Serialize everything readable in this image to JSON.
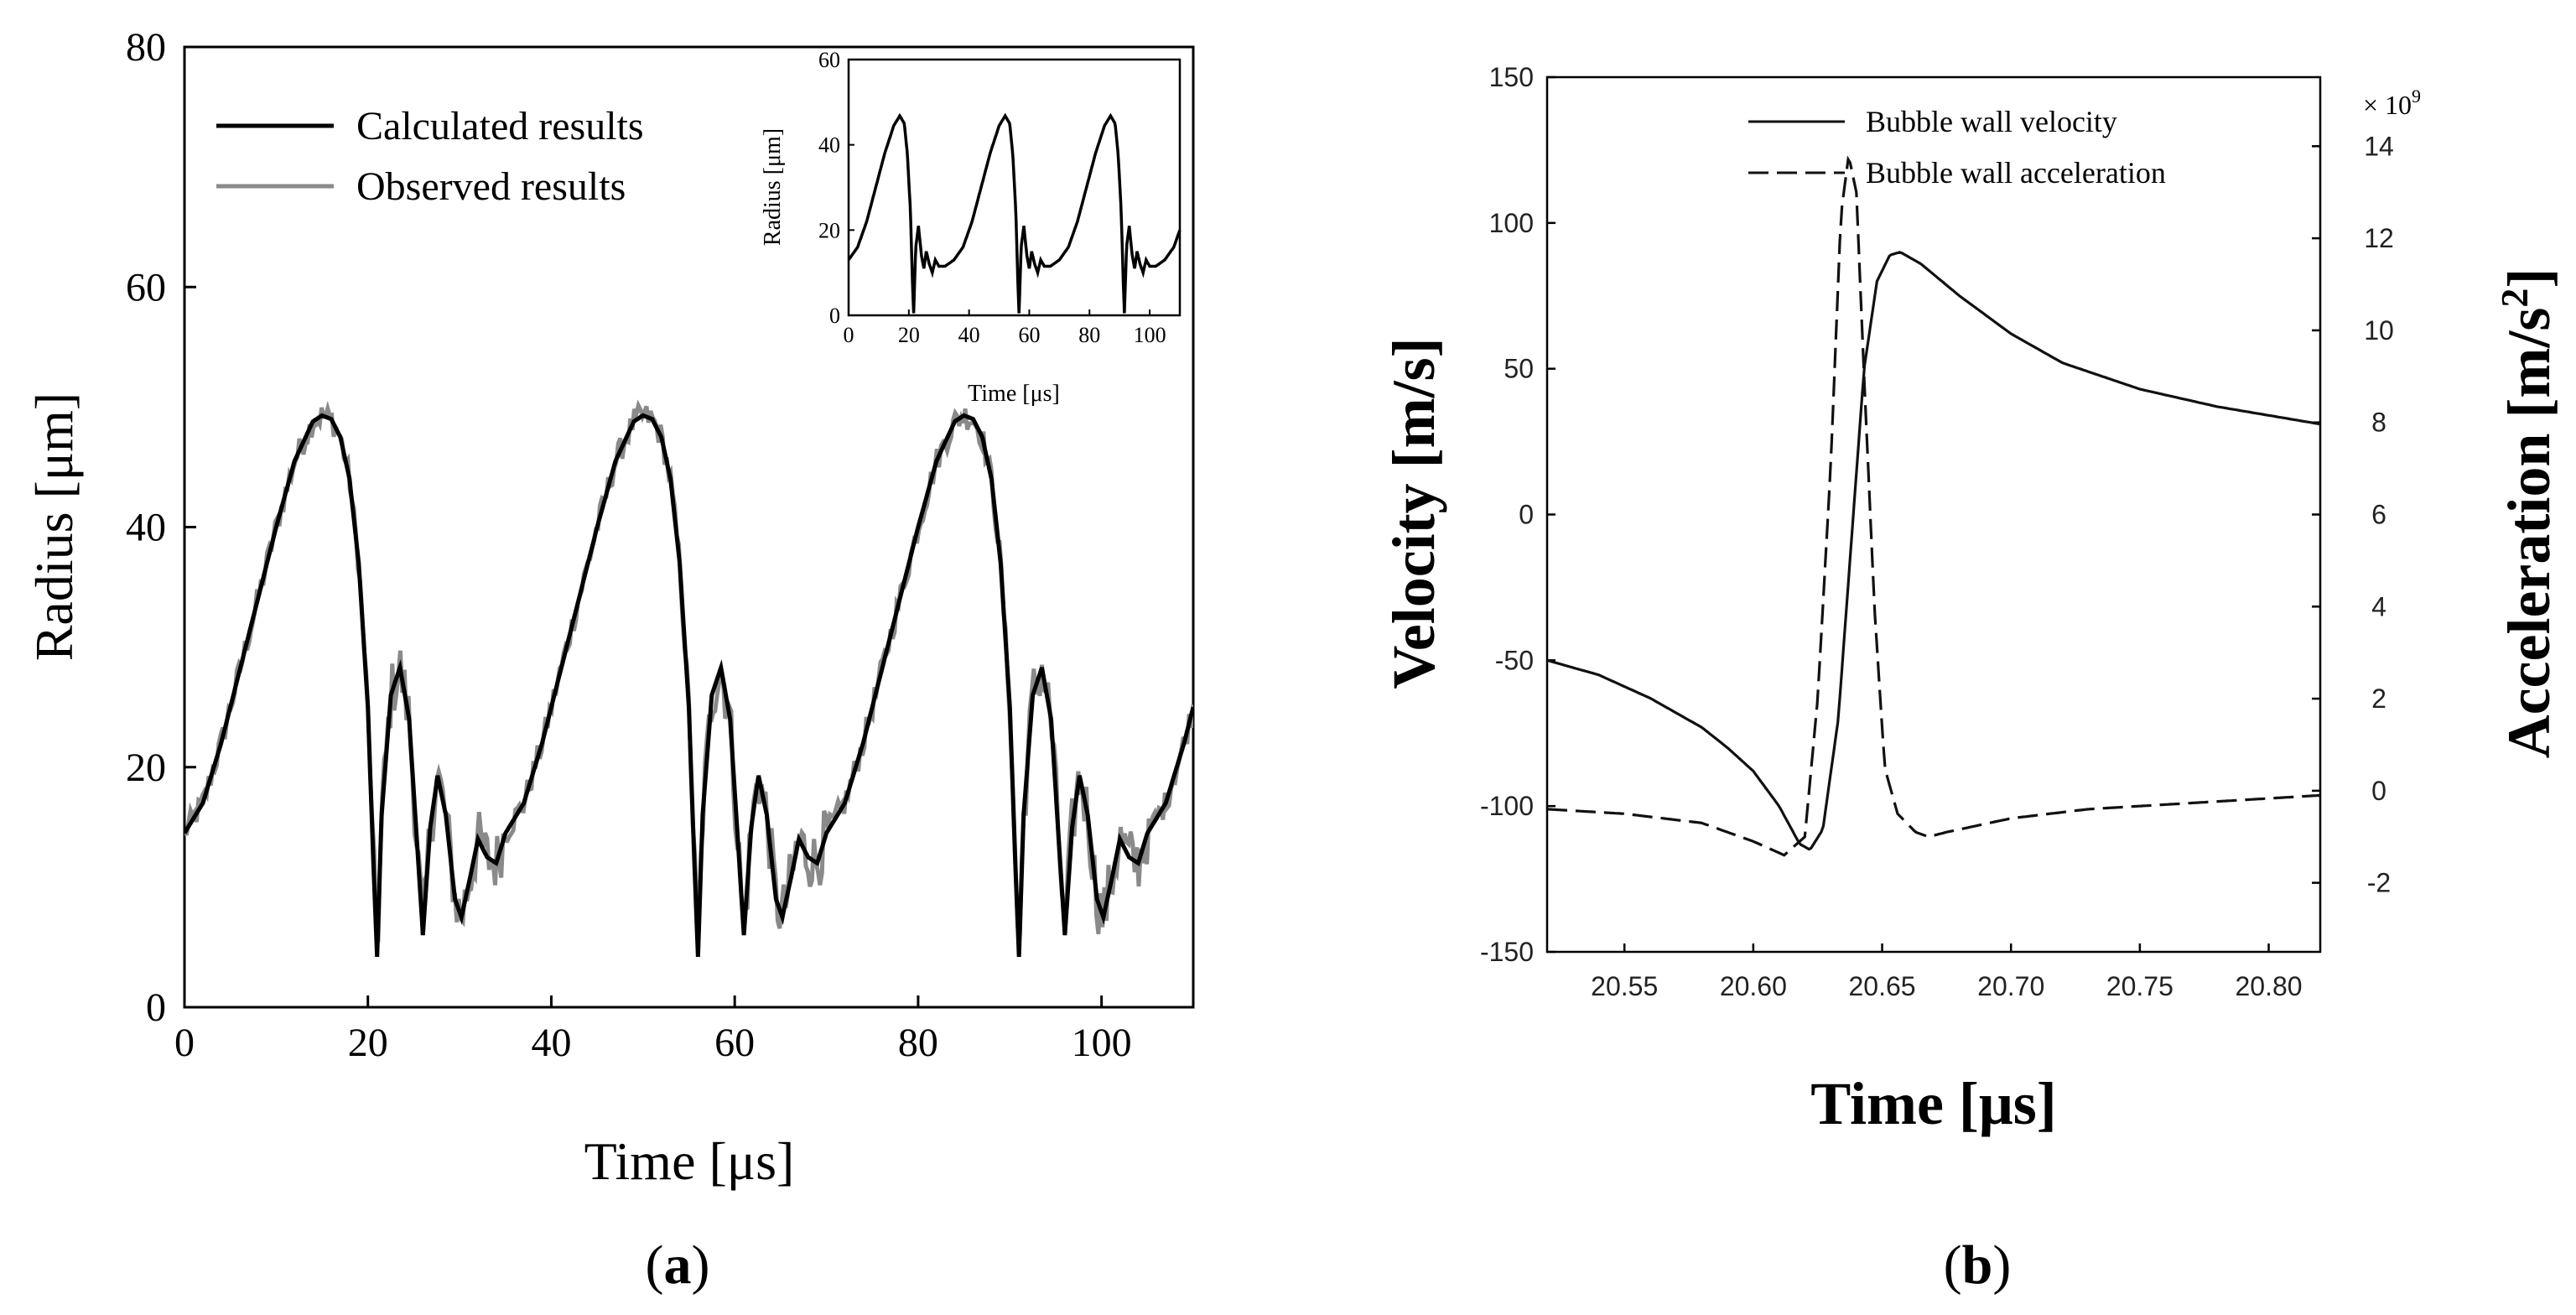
{
  "chart_data": [
    {
      "panel": "(a)",
      "panel_letter": "a",
      "type": "line",
      "title": "",
      "xlabel": "Time [μs]",
      "ylabel": "Radius [μm]",
      "xlim": [
        0,
        110
      ],
      "ylim": [
        0,
        80
      ],
      "xticks": [
        "0",
        "20",
        "40",
        "60",
        "80",
        "100"
      ],
      "yticks": [
        "0",
        "20",
        "40",
        "60",
        "80"
      ],
      "legend": [
        "Calculated results",
        "Observed results"
      ],
      "period": 35,
      "cycle_points": [
        [
          0,
          14.5
        ],
        [
          2,
          17
        ],
        [
          4,
          22
        ],
        [
          6,
          28
        ],
        [
          8,
          34
        ],
        [
          10,
          40
        ],
        [
          12,
          45.5
        ],
        [
          14,
          48.8
        ],
        [
          15,
          49.3
        ],
        [
          16,
          49.0
        ],
        [
          17,
          47.5
        ],
        [
          18,
          44
        ],
        [
          19,
          37
        ],
        [
          20,
          25
        ],
        [
          20.6,
          12
        ],
        [
          21.0,
          4.2
        ],
        [
          21.5,
          16
        ],
        [
          22.5,
          26
        ],
        [
          23.5,
          28.3
        ],
        [
          24.5,
          24
        ],
        [
          25.5,
          12
        ],
        [
          26.0,
          6.0
        ],
        [
          26.8,
          15
        ],
        [
          27.6,
          19.3
        ],
        [
          28.5,
          16
        ],
        [
          29.5,
          9
        ],
        [
          30.2,
          7.5
        ],
        [
          31.2,
          11
        ],
        [
          32.0,
          14
        ],
        [
          33.0,
          12.5
        ],
        [
          34.0,
          12
        ],
        [
          35,
          14.5
        ]
      ],
      "inset": {
        "xlabel": "Time [μs]",
        "ylabel": "Radius [μm]",
        "xlim": [
          0,
          110
        ],
        "ylim": [
          0,
          60
        ],
        "xticks": [
          "0",
          "20",
          "40",
          "60",
          "80",
          "100"
        ],
        "yticks": [
          "0",
          "20",
          "40",
          "60"
        ],
        "period": 35,
        "cycle_points": [
          [
            0,
            13
          ],
          [
            3,
            16
          ],
          [
            6,
            22
          ],
          [
            9,
            30
          ],
          [
            12,
            38
          ],
          [
            15,
            44.5
          ],
          [
            17,
            46.8
          ],
          [
            18.5,
            45
          ],
          [
            19.5,
            38
          ],
          [
            20.5,
            25
          ],
          [
            21.2,
            8
          ],
          [
            21.6,
            0.5
          ],
          [
            22.3,
            16
          ],
          [
            23.2,
            21
          ],
          [
            24.2,
            14
          ],
          [
            25.0,
            11
          ],
          [
            25.8,
            15
          ],
          [
            26.8,
            12
          ],
          [
            27.8,
            10
          ],
          [
            28.8,
            13
          ],
          [
            30,
            11.5
          ],
          [
            32,
            11.5
          ],
          [
            34,
            12.5
          ],
          [
            35,
            13
          ]
        ]
      }
    },
    {
      "panel": "(b)",
      "panel_letter": "b",
      "type": "line",
      "title": "",
      "xlabel": "Time [μs]",
      "ylabel": "Velocity [m/s]",
      "ylabel_right": "Acceleration [m/s²]",
      "ylabel_right_main": "Acceleration [m/s",
      "ylabel_right_sup": "2",
      "ylabel_right_end": "]",
      "xlim": [
        20.52,
        20.82
      ],
      "ylim": [
        -150,
        150
      ],
      "ylim_right": [
        -3.5,
        15.5
      ],
      "right_axis_multiplier": "× 10",
      "right_axis_exponent": "9",
      "xticks": [
        "20.55",
        "20.60",
        "20.65",
        "20.70",
        "20.75",
        "20.80"
      ],
      "yticks": [
        "150",
        "100",
        "50",
        "0",
        "-50",
        "-100",
        "-150"
      ],
      "yticks_right": [
        "14",
        "12",
        "10",
        "8",
        "6",
        "4",
        "2",
        "0",
        "-2"
      ],
      "legend": [
        "Bubble wall velocity",
        "Bubble wall acceleration"
      ],
      "series": [
        {
          "name": "Bubble wall velocity",
          "axis": "left",
          "points": [
            [
              20.52,
              -50
            ],
            [
              20.54,
              -55
            ],
            [
              20.56,
              -63
            ],
            [
              20.58,
              -73
            ],
            [
              20.59,
              -80
            ],
            [
              20.6,
              -88
            ],
            [
              20.61,
              -100
            ],
            [
              20.618,
              -113
            ],
            [
              20.622,
              -115
            ],
            [
              20.627,
              -108
            ],
            [
              20.633,
              -70
            ],
            [
              20.638,
              -10
            ],
            [
              20.643,
              50
            ],
            [
              20.648,
              80
            ],
            [
              20.653,
              89
            ],
            [
              20.657,
              90
            ],
            [
              20.665,
              86
            ],
            [
              20.68,
              75
            ],
            [
              20.7,
              62
            ],
            [
              20.72,
              52
            ],
            [
              20.75,
              43
            ],
            [
              20.78,
              37
            ],
            [
              20.82,
              31
            ]
          ]
        },
        {
          "name": "Bubble wall acceleration",
          "axis": "right",
          "points": [
            [
              20.52,
              -0.4
            ],
            [
              20.55,
              -0.5
            ],
            [
              20.58,
              -0.7
            ],
            [
              20.6,
              -1.1
            ],
            [
              20.612,
              -1.4
            ],
            [
              20.62,
              -1.0
            ],
            [
              20.625,
              2.0
            ],
            [
              20.63,
              7.0
            ],
            [
              20.634,
              12.5
            ],
            [
              20.637,
              13.8
            ],
            [
              20.64,
              13.0
            ],
            [
              20.643,
              9.0
            ],
            [
              20.647,
              4.0
            ],
            [
              20.651,
              0.5
            ],
            [
              20.656,
              -0.5
            ],
            [
              20.663,
              -0.9
            ],
            [
              20.668,
              -1.0
            ],
            [
              20.675,
              -0.9
            ],
            [
              20.7,
              -0.6
            ],
            [
              20.73,
              -0.4
            ],
            [
              20.76,
              -0.3
            ],
            [
              20.82,
              -0.1
            ]
          ]
        }
      ]
    }
  ]
}
